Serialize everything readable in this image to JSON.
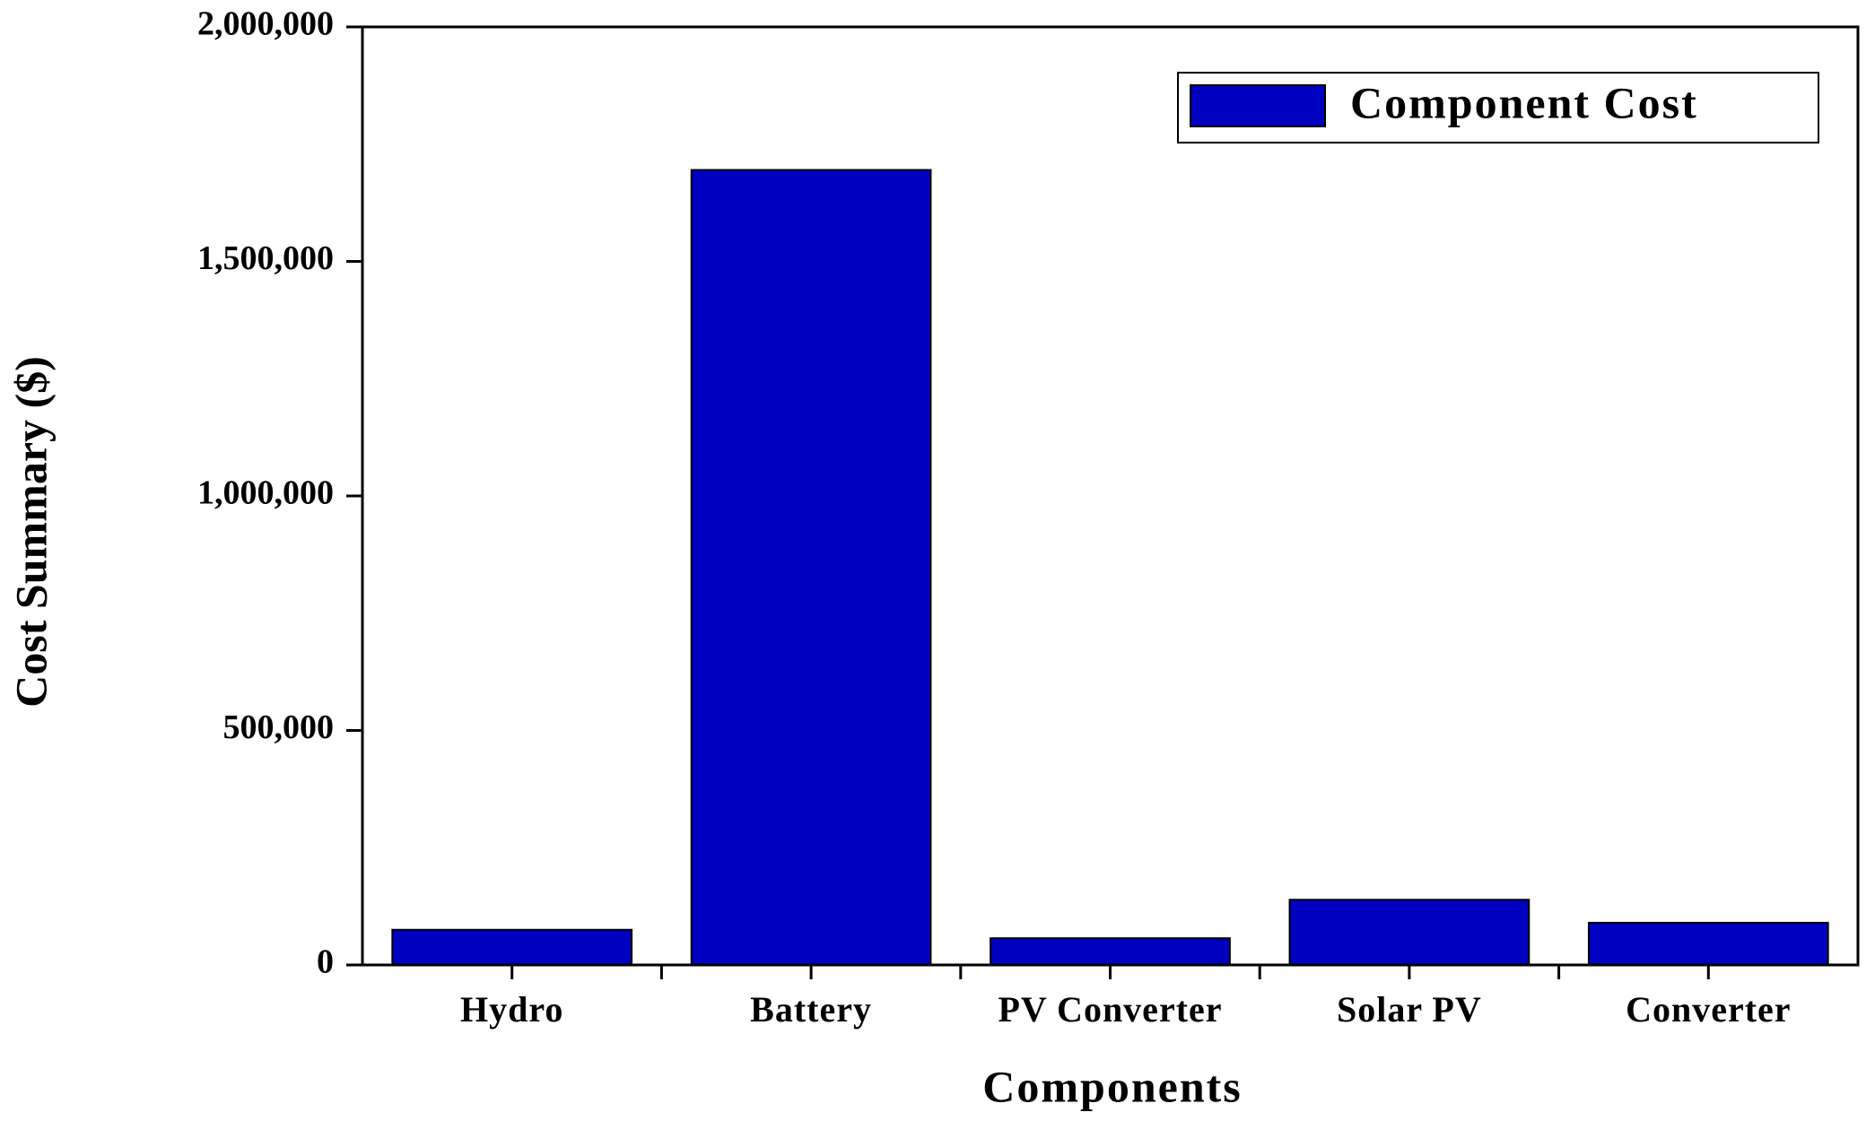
{
  "chart_data": {
    "type": "bar",
    "x_label": "Components",
    "y_label": "Cost Summary ($)",
    "categories": [
      "Hydro",
      "Battery",
      "PV Converter",
      "Solar PV",
      "Converter"
    ],
    "series": [
      {
        "name": "Component Cost",
        "color": "#0000c0",
        "values": [
          75000,
          1695000,
          57000,
          139000,
          90000
        ]
      }
    ],
    "ylim": [
      0,
      2000000
    ],
    "yticks": [
      {
        "value": 0,
        "label": "0"
      },
      {
        "value": 500000,
        "label": "500,000"
      },
      {
        "value": 1000000,
        "label": "1,000,000"
      },
      {
        "value": 1500000,
        "label": "1,500,000"
      },
      {
        "value": 2000000,
        "label": "2,000,000"
      }
    ],
    "grid": false,
    "legend": "upper right"
  }
}
